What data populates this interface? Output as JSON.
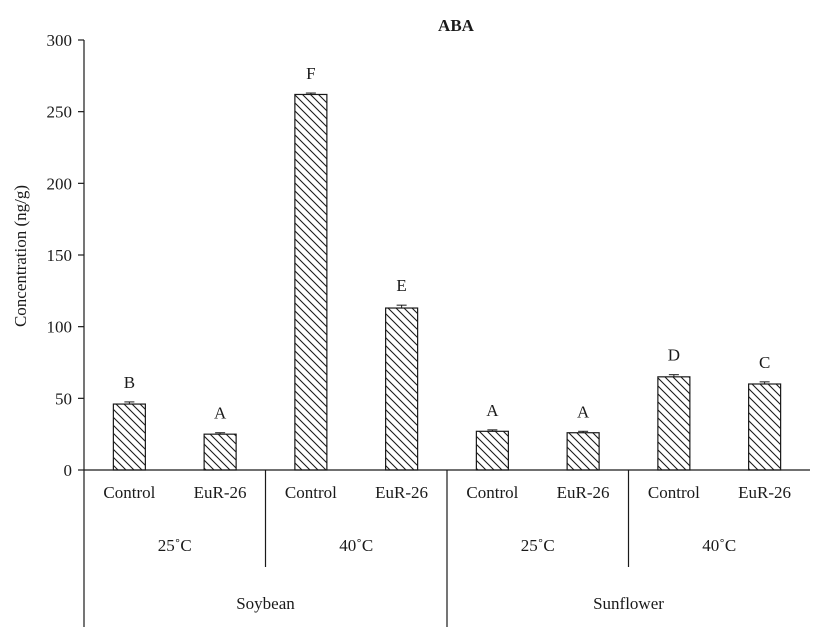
{
  "chart_data": {
    "type": "bar",
    "title": "ABA",
    "ylabel": "Concentration (ng/g)",
    "xlabel": "",
    "ylim": [
      0,
      300
    ],
    "yticks": [
      0,
      50,
      100,
      150,
      200,
      250,
      300
    ],
    "grid": false,
    "bar_pattern": "diagonal-hatch",
    "categories": [
      "Control",
      "EuR-26",
      "Control",
      "EuR-26",
      "Control",
      "EuR-26",
      "Control",
      "EuR-26"
    ],
    "values": [
      46,
      25,
      262,
      113,
      27,
      26,
      65,
      60
    ],
    "errors": [
      1.5,
      1,
      1,
      2,
      1,
      1,
      1.5,
      1.5
    ],
    "letters": [
      "B",
      "A",
      "F",
      "E",
      "A",
      "A",
      "D",
      "C"
    ],
    "temperature_groups": [
      {
        "label": "25˚C",
        "span": [
          0,
          1
        ]
      },
      {
        "label": "40˚C",
        "span": [
          2,
          3
        ]
      },
      {
        "label": "25˚C",
        "span": [
          4,
          5
        ]
      },
      {
        "label": "40˚C",
        "span": [
          6,
          7
        ]
      }
    ],
    "species_groups": [
      {
        "label": "Soybean",
        "span": [
          0,
          3
        ]
      },
      {
        "label": "Sunflower",
        "span": [
          4,
          7
        ]
      }
    ]
  }
}
